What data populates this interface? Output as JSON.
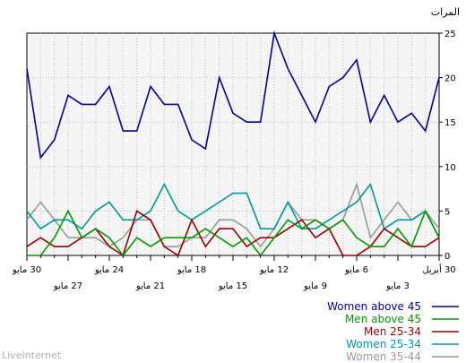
{
  "chart_data": {
    "type": "line",
    "ylabel": "المرات",
    "ylim": [
      0,
      25
    ],
    "yticks": [
      0,
      5,
      10,
      15,
      20,
      25
    ],
    "grid": true,
    "legend_position": "bottom-right",
    "x": [
      "30 أبريل",
      "1 مايو",
      "2 مايو",
      "3 مايو",
      "4 مايو",
      "5 مايو",
      "6 مايو",
      "7 مايو",
      "8 مايو",
      "9 مايو",
      "10 مايو",
      "11 مايو",
      "12 مايو",
      "13 مايو",
      "14 مايو",
      "15 مايو",
      "16 مايو",
      "17 مايو",
      "18 مايو",
      "19 مايو",
      "20 مايو",
      "21 مايو",
      "22 مايو",
      "23 مايو",
      "24 مايو",
      "25 مايو",
      "26 مايو",
      "27 مايو",
      "28 مايو",
      "29 مايو",
      "30 مايو"
    ],
    "x_tick_labels": [
      {
        "index": 0,
        "label": "30 أبريل",
        "row": 1
      },
      {
        "index": 3,
        "label": "3 مايو",
        "row": 2
      },
      {
        "index": 6,
        "label": "6 مايو",
        "row": 1
      },
      {
        "index": 9,
        "label": "9 مايو",
        "row": 2
      },
      {
        "index": 12,
        "label": "12 مايو",
        "row": 1
      },
      {
        "index": 15,
        "label": "15 مايو",
        "row": 2
      },
      {
        "index": 18,
        "label": "18 مايو",
        "row": 1
      },
      {
        "index": 21,
        "label": "21 مايو",
        "row": 2
      },
      {
        "index": 24,
        "label": "24 مايو",
        "row": 1
      },
      {
        "index": 27,
        "label": "27 مايو",
        "row": 2
      },
      {
        "index": 30,
        "label": "30 مايو",
        "row": 1
      }
    ],
    "series": [
      {
        "name": "Women above 45",
        "color": "#000099",
        "values": [
          20,
          14,
          16,
          15,
          18,
          15,
          22,
          20,
          19,
          15,
          18,
          21,
          25,
          15,
          15,
          16,
          20,
          12,
          13,
          17,
          17,
          19,
          14,
          14,
          19,
          17,
          17,
          18,
          13,
          11,
          21
        ]
      },
      {
        "name": "Men above 45",
        "color": "#009900",
        "values": [
          2,
          5,
          1,
          3,
          1,
          1,
          2,
          4,
          3,
          4,
          3,
          4,
          2,
          0,
          2,
          1,
          2,
          3,
          2,
          2,
          2,
          1,
          2,
          0,
          2,
          3,
          2,
          5,
          2,
          0,
          0
        ]
      },
      {
        "name": "Men 25-34",
        "color": "#990000",
        "values": [
          2,
          1,
          1,
          2,
          3,
          1,
          0,
          0,
          3,
          2,
          4,
          3,
          2,
          2,
          1,
          3,
          3,
          1,
          4,
          0,
          1,
          4,
          5,
          0,
          1,
          3,
          2,
          1,
          1,
          2,
          1
        ]
      },
      {
        "name": "Women 25-34",
        "color": "#009999",
        "values": [
          2,
          5,
          4,
          4,
          3,
          8,
          6,
          5,
          4,
          3,
          3,
          6,
          3,
          3,
          7,
          7,
          6,
          5,
          4,
          5,
          8,
          5,
          4,
          4,
          6,
          5,
          3,
          4,
          4,
          3,
          5
        ]
      },
      {
        "name": "Women 35-44",
        "color": "#999999",
        "values": [
          3,
          5,
          4,
          6,
          4,
          2,
          8,
          4,
          3,
          4,
          4,
          6,
          3,
          1,
          3,
          4,
          4,
          2,
          2,
          1,
          1,
          4,
          4,
          2,
          1,
          2,
          2,
          2,
          4,
          6,
          4
        ]
      }
    ]
  },
  "watermark": "LiveInternet"
}
